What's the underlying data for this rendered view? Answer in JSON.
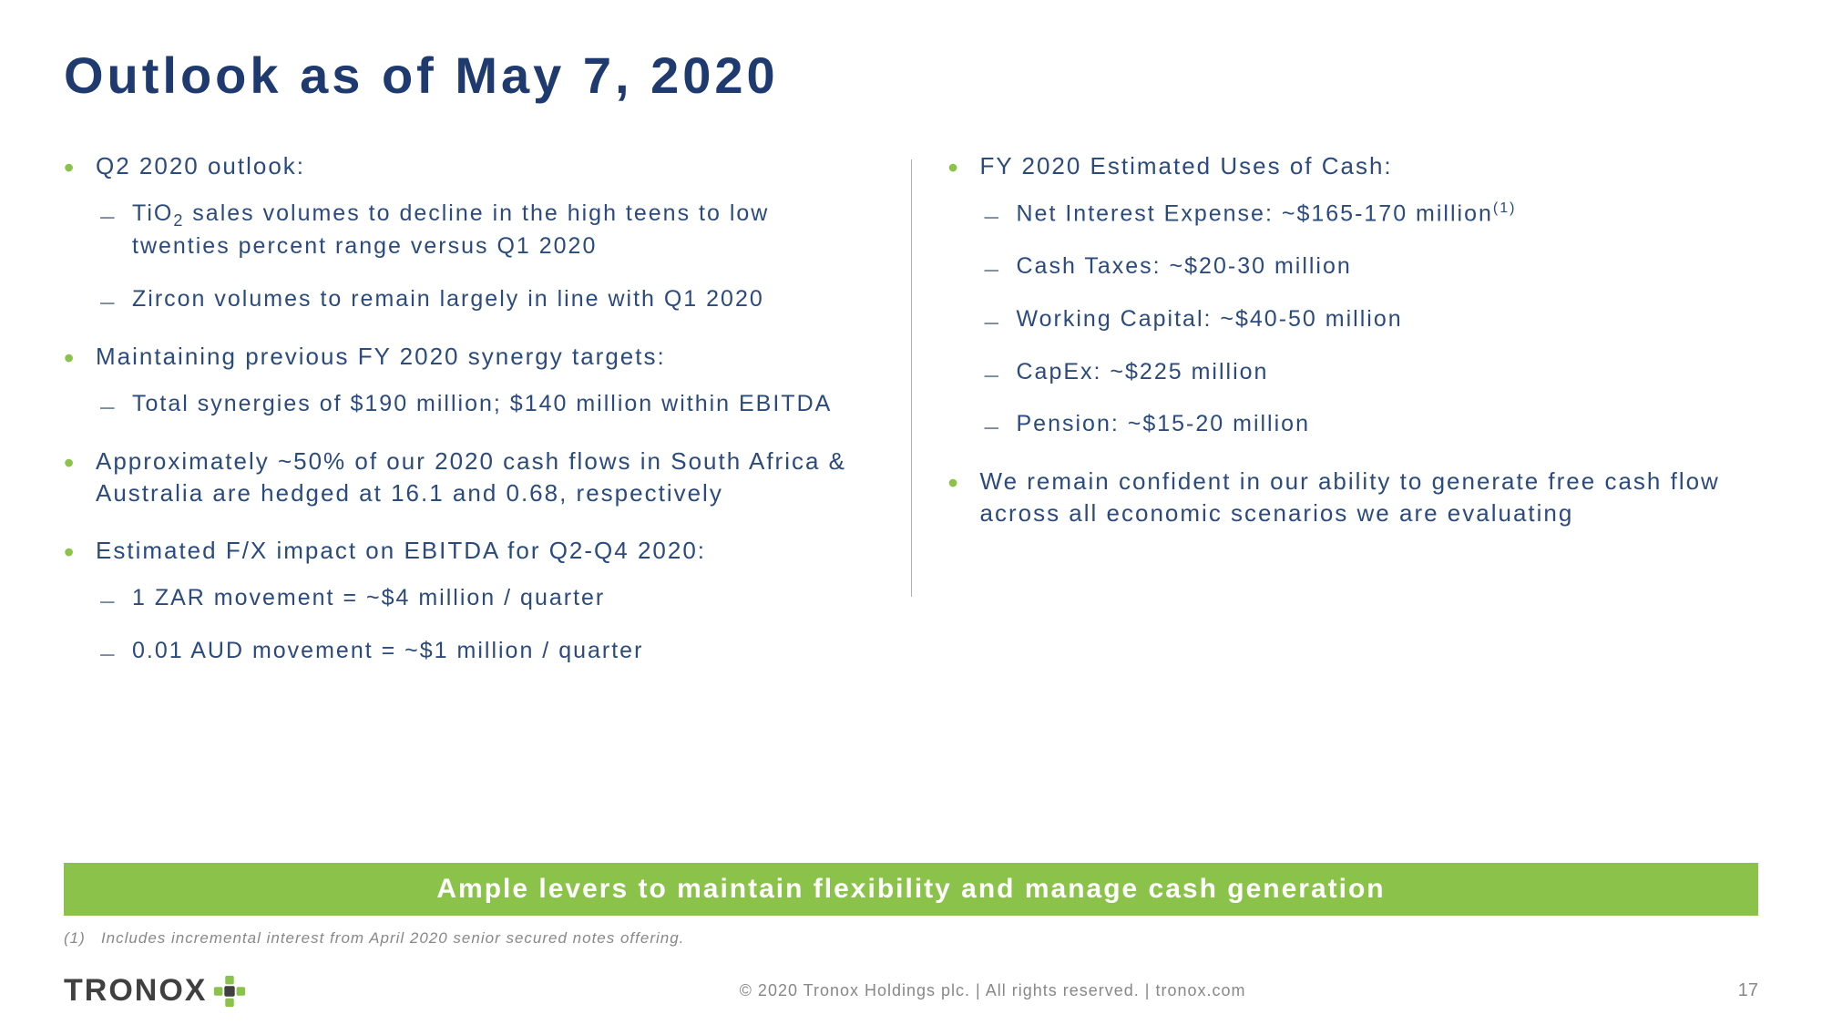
{
  "colors": {
    "title": "#1f3a6e",
    "body": "#2b4a7d",
    "bullet": "#8bc34a",
    "dash": "#7a8aa0",
    "banner_bg": "#8bc34a",
    "footnote": "#888888",
    "logo_text": "#404040",
    "logo_accent": "#8bc34a"
  },
  "title": "Outlook as of May 7, 2020",
  "left": {
    "b1": "Q2 2020 outlook:",
    "b1s1a": "TiO",
    "b1s1b": " sales volumes to decline in the high teens to low twenties percent range versus Q1 2020",
    "b1s2": "Zircon volumes to remain largely in line with Q1 2020",
    "b2": "Maintaining previous FY 2020 synergy targets:",
    "b2s1": "Total synergies of $190 million; $140 million within EBITDA",
    "b3": "Approximately ~50% of our 2020 cash flows in South Africa & Australia are hedged at 16.1 and 0.68, respectively",
    "b4": "Estimated F/X impact on EBITDA for Q2-Q4 2020:",
    "b4s1": "1 ZAR movement = ~$4 million / quarter",
    "b4s2": "0.01 AUD movement = ~$1 million / quarter"
  },
  "right": {
    "b1": "FY 2020 Estimated Uses of Cash:",
    "b1s1a": "Net Interest Expense: ~$165-170 million",
    "b1s1sup": "(1)",
    "b1s2": "Cash Taxes: ~$20-30 million",
    "b1s3": "Working Capital: ~$40-50 million",
    "b1s4": "CapEx:   ~$225 million",
    "b1s5": "Pension: ~$15-20 million",
    "b2": "We remain confident in our ability to generate free cash flow across all economic scenarios we are evaluating"
  },
  "banner": "Ample levers to maintain flexibility and manage cash generation",
  "footnote_label": "(1)",
  "footnote_text": "Includes incremental interest from April 2020 senior secured notes offering.",
  "logo": "TRONOX",
  "copyright": "© 2020 Tronox Holdings plc.  |  All rights reserved.  |  tronox.com",
  "pagenum": "17"
}
